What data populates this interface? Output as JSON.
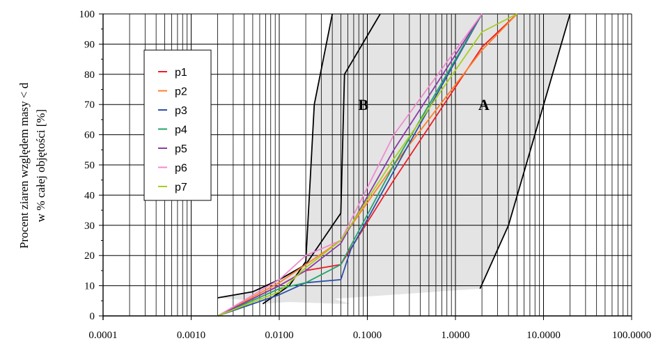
{
  "chart_data": {
    "type": "line",
    "x_scale": "log",
    "xlim": [
      0.0001,
      100
    ],
    "ylim": [
      0,
      100
    ],
    "x_tick_labels": [
      "0.0001",
      "0.0010",
      "0.0100",
      "0.1000",
      "1.0000",
      "10.0000",
      "100.0000"
    ],
    "x_tick_values": [
      0.0001,
      0.001,
      0.01,
      0.1,
      1,
      10,
      100
    ],
    "y_tick_values": [
      0,
      10,
      20,
      30,
      40,
      50,
      60,
      70,
      80,
      90,
      100
    ],
    "ylabel_lines": [
      "Procent ziaren względem masy < d",
      "w % całej objętości [%]"
    ],
    "xlabel": "",
    "grid": true,
    "legend_position": "upper-left",
    "zones": [
      {
        "name": "A",
        "left_boundary": [
          [
            0.0065,
            4
          ],
          [
            0.013,
            10
          ],
          [
            0.02,
            18
          ],
          [
            0.025,
            70
          ],
          [
            0.04,
            100
          ]
        ],
        "right_boundary": [
          [
            1.9,
            9
          ],
          [
            4,
            30
          ],
          [
            20,
            100
          ]
        ],
        "bottom_edge": [
          [
            0.0065,
            4
          ],
          [
            1.9,
            9
          ]
        ]
      },
      {
        "name": "B",
        "left_boundary": [
          [
            0.002,
            6
          ],
          [
            0.005,
            8
          ],
          [
            0.01,
            12
          ],
          [
            0.02,
            17
          ],
          [
            0.05,
            34
          ],
          [
            0.055,
            80
          ],
          [
            0.14,
            100
          ]
        ],
        "bottom_edge": [
          [
            0.002,
            6
          ],
          [
            0.005,
            5
          ],
          [
            0.05,
            4
          ],
          [
            0.065,
            4
          ]
        ]
      }
    ],
    "series": [
      {
        "name": "p1",
        "color": "#ee1c25",
        "x": [
          0.002,
          0.01,
          0.02,
          0.05,
          0.2,
          2,
          5
        ],
        "y": [
          0,
          10,
          15,
          17,
          45,
          89,
          100
        ]
      },
      {
        "name": "p2",
        "color": "#ff7f27",
        "x": [
          0.002,
          0.01,
          0.02,
          0.05,
          0.2,
          2,
          5
        ],
        "y": [
          0,
          11,
          17,
          25,
          50,
          88,
          100
        ]
      },
      {
        "name": "p3",
        "color": "#2e4fa8",
        "x": [
          0.002,
          0.01,
          0.02,
          0.05,
          0.065,
          0.2,
          2
        ],
        "y": [
          0,
          7,
          11,
          12,
          22,
          48,
          100
        ]
      },
      {
        "name": "p4",
        "color": "#22a36b",
        "x": [
          0.002,
          0.01,
          0.02,
          0.05,
          0.2,
          2
        ],
        "y": [
          0,
          9,
          11,
          17,
          50,
          100
        ]
      },
      {
        "name": "p5",
        "color": "#8b3aa8",
        "x": [
          0.002,
          0.01,
          0.02,
          0.05,
          0.2,
          2
        ],
        "y": [
          0,
          10,
          15,
          24,
          55,
          100
        ]
      },
      {
        "name": "p6",
        "color": "#f08ad0",
        "x": [
          0.002,
          0.01,
          0.02,
          0.05,
          0.2,
          2
        ],
        "y": [
          0,
          12,
          20,
          25,
          60,
          100
        ]
      },
      {
        "name": "p7",
        "color": "#a6ce1e",
        "x": [
          0.002,
          0.01,
          0.02,
          0.05,
          0.2,
          2,
          5
        ],
        "y": [
          0,
          8,
          16,
          25,
          52,
          94,
          100
        ]
      }
    ]
  }
}
